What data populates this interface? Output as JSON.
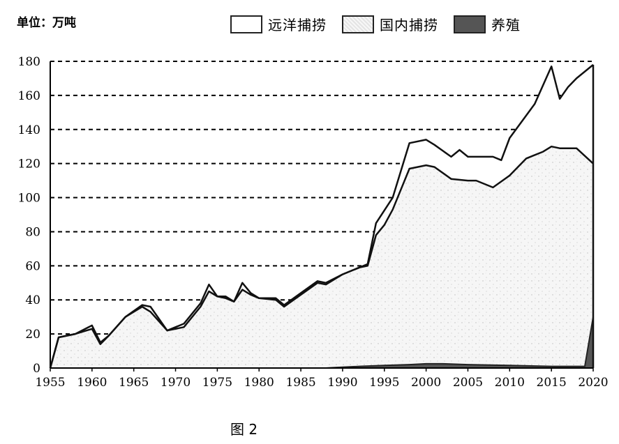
{
  "unit_label": "单位：万吨",
  "caption": "图 2",
  "legend": [
    {
      "label": "远洋捕捞",
      "color": "#ffffff",
      "pattern": "none"
    },
    {
      "label": "国内捕捞",
      "color": "#e8e8e8",
      "pattern": "speckle"
    },
    {
      "label": "养殖",
      "color": "#555555",
      "pattern": "dark"
    }
  ],
  "chart_data": {
    "type": "area",
    "stacked": true,
    "xlabel": "",
    "ylabel": "",
    "xlim": [
      1955,
      2020
    ],
    "ylim": [
      0,
      180
    ],
    "x_ticks": [
      1955,
      1960,
      1965,
      1970,
      1975,
      1980,
      1985,
      1990,
      1995,
      2000,
      2005,
      2010,
      2015,
      2020
    ],
    "y_ticks": [
      0,
      20,
      40,
      60,
      80,
      100,
      120,
      140,
      160,
      180
    ],
    "grid": "horizontal dashed",
    "legend_position": "top",
    "series": [
      {
        "name": "养殖",
        "x": [
          1955,
          1988,
          1990,
          1992,
          1995,
          1998,
          2000,
          2002,
          2005,
          2010,
          2015,
          2019,
          2020
        ],
        "values": [
          0,
          0,
          0.5,
          1,
          1.5,
          2,
          2.5,
          2.5,
          2,
          1.5,
          1,
          1,
          30
        ]
      },
      {
        "name": "国内捕捞",
        "x": [
          1955,
          1956,
          1958,
          1960,
          1961,
          1962,
          1964,
          1966,
          1967,
          1969,
          1971,
          1973,
          1974,
          1975,
          1976,
          1977,
          1978,
          1979,
          1980,
          1982,
          1983,
          1985,
          1987,
          1988,
          1990,
          1992,
          1993,
          1994,
          1995,
          1996,
          1998,
          2000,
          2001,
          2003,
          2005,
          2006,
          2008,
          2010,
          2012,
          2014,
          2015,
          2016,
          2018,
          2020
        ],
        "values": [
          0,
          18,
          20,
          23,
          14,
          19,
          30,
          36,
          33,
          22,
          24,
          36,
          45,
          42,
          41,
          39,
          46,
          43,
          41,
          40,
          36,
          43,
          50,
          49,
          55,
          59,
          60,
          78,
          84,
          93,
          117,
          119,
          118,
          111,
          110,
          110,
          106,
          113,
          123,
          127,
          130,
          129,
          129,
          120
        ]
      },
      {
        "name": "远洋捕捞",
        "x": [
          1955,
          1956,
          1958,
          1960,
          1961,
          1962,
          1964,
          1966,
          1967,
          1969,
          1971,
          1973,
          1974,
          1975,
          1976,
          1977,
          1978,
          1979,
          1980,
          1982,
          1983,
          1985,
          1987,
          1988,
          1990,
          1992,
          1993,
          1994,
          1996,
          1998,
          2000,
          2001,
          2003,
          2004,
          2005,
          2008,
          2009,
          2010,
          2013,
          2015,
          2016,
          2017,
          2018,
          2020
        ],
        "values": [
          0,
          18,
          20,
          25,
          15,
          19,
          30,
          37,
          36,
          22,
          26,
          38,
          49,
          42,
          42,
          39,
          50,
          44,
          41,
          41,
          37,
          44,
          51,
          50,
          55,
          59,
          61,
          85,
          100,
          132,
          134,
          131,
          124,
          128,
          124,
          124,
          122,
          135,
          155,
          177,
          158,
          165,
          170,
          178
        ]
      }
    ]
  }
}
